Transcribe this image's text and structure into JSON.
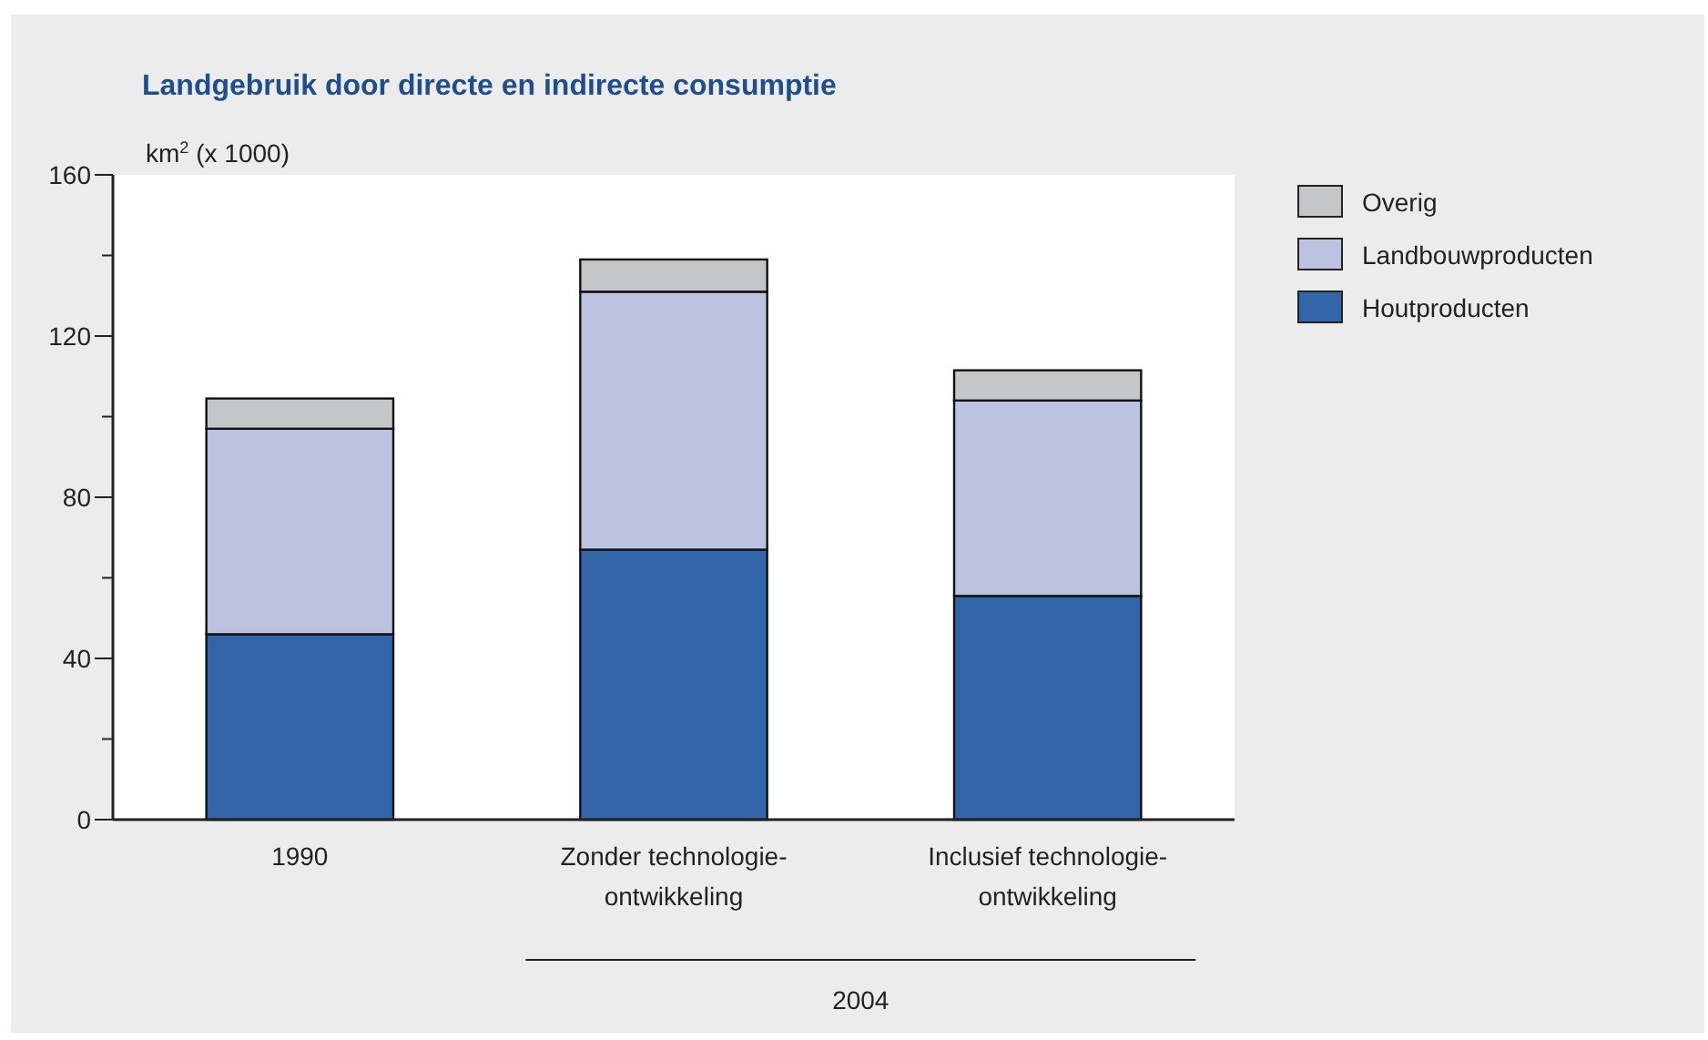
{
  "chart_data": {
    "type": "bar",
    "stacked": true,
    "title": "Landgebruik door directe en indirecte consumptie",
    "ylabel": "km$^{2}$ (x 1000)",
    "categories": [
      "1990",
      "Zonder technologie-ontwikkeling",
      "Inclusief technologie-ontwikkeling"
    ],
    "series": [
      {
        "name": "Houtproducten",
        "color": "#3366a8",
        "values": [
          46,
          67,
          55.5
        ]
      },
      {
        "name": "Landbouwproducten",
        "color": "#bbc3e0",
        "values": [
          51,
          64,
          48.5
        ]
      },
      {
        "name": "Overig",
        "color": "#c5c6c8",
        "values": [
          7.5,
          8,
          7.5
        ]
      }
    ],
    "ylim": [
      0,
      160
    ],
    "yticks": [
      0,
      {
        "value": 20,
        "label": null
      },
      40,
      {
        "value": 60,
        "label": null
      },
      80,
      {
        "value": 100,
        "label": null
      },
      120,
      {
        "value": 140,
        "label": null
      },
      160
    ],
    "annotations": [
      "2004"
    ],
    "legend": "right",
    "grid": false
  }
}
